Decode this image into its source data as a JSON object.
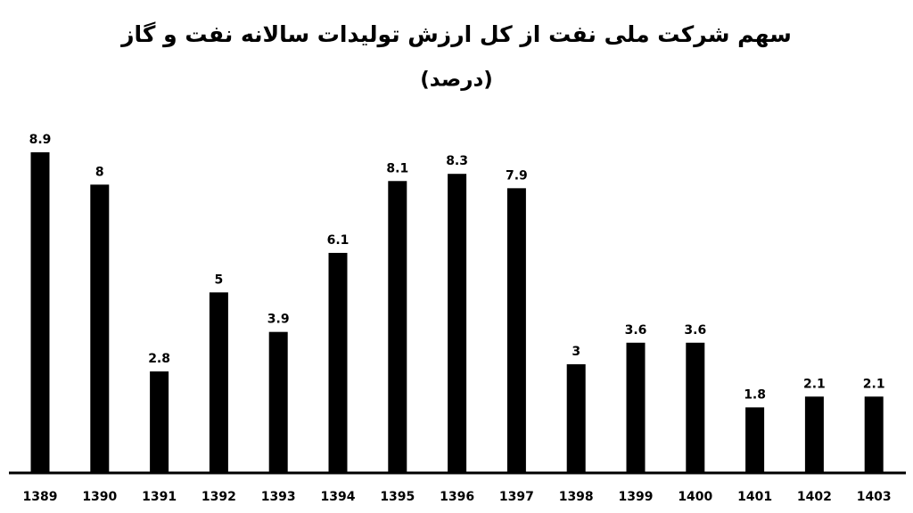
{
  "chart_data": {
    "type": "bar",
    "title": "سهم شرکت ملی نفت از کل ارزش تولیدات سالانه نفت و گاز",
    "subtitle": "(درصد)",
    "categories": [
      "1389",
      "1390",
      "1391",
      "1392",
      "1393",
      "1394",
      "1395",
      "1396",
      "1397",
      "1398",
      "1399",
      "1400",
      "1401",
      "1402",
      "1403"
    ],
    "values": [
      8.9,
      8,
      2.8,
      5,
      3.9,
      6.1,
      8.1,
      8.3,
      7.9,
      3,
      3.6,
      3.6,
      1.8,
      2.1,
      2.1
    ],
    "color": "#000000"
  }
}
